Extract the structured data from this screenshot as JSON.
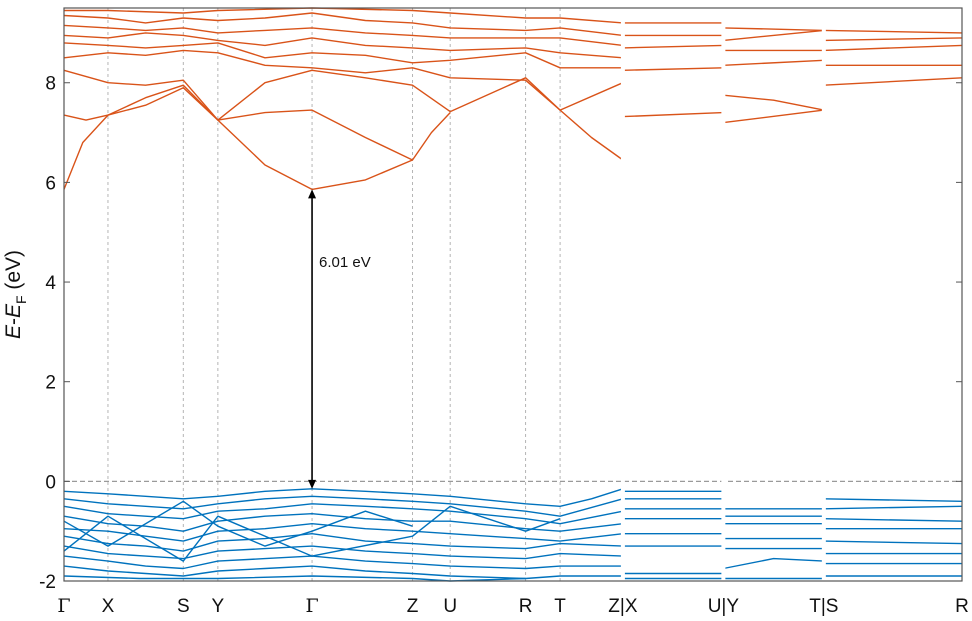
{
  "chart_data": {
    "type": "line",
    "title": "",
    "ylabel": {
      "parts": [
        "E",
        "-",
        "E",
        "F",
        " (eV)"
      ]
    },
    "ylim": [
      -2,
      9.5
    ],
    "yticks": [
      -2,
      0,
      2,
      4,
      6,
      8
    ],
    "fermi_level": 0,
    "kpath_labels": [
      "Γ",
      "X",
      "S",
      "Y",
      "Γ",
      "Z",
      "U",
      "R",
      "T",
      "Z|X",
      "U|Y",
      "T|S",
      "R"
    ],
    "kpath_positions": [
      0,
      0.7,
      1.9,
      2.45,
      3.95,
      5.55,
      6.15,
      7.35,
      7.9,
      8.9,
      10.5,
      12.1,
      14.3
    ],
    "gap": {
      "label": "6.01 eV",
      "k": 3.95,
      "vbm": -0.15,
      "cbm": 5.86
    },
    "colors": {
      "conduction": "#d95319",
      "valence": "#0072bd",
      "fermi": "#9a9a9a",
      "kline": "#b5b5b5",
      "frame": "#555555",
      "arrow": "#000000"
    },
    "series": [
      {
        "band": "conduction",
        "x": [
          0,
          0.3,
          0.7,
          1.3,
          1.9,
          2.45,
          3.2,
          3.95,
          4.8,
          5.55,
          5.85,
          6.15
        ],
        "y": [
          5.86,
          6.8,
          7.35,
          7.55,
          7.9,
          7.25,
          6.35,
          5.86,
          6.05,
          6.45,
          7.0,
          7.4
        ]
      },
      {
        "band": "conduction",
        "x": [
          0,
          0.35,
          0.7,
          1.3,
          1.9,
          2.45,
          3.2,
          3.95,
          4.8,
          5.55
        ],
        "y": [
          7.35,
          7.25,
          7.35,
          7.7,
          7.95,
          7.25,
          7.4,
          7.45,
          6.9,
          6.45
        ]
      },
      {
        "band": "conduction",
        "x": [
          0,
          0.7,
          1.3,
          1.9,
          2.45,
          3.2,
          3.95,
          4.8,
          5.55,
          6.15,
          7.35,
          7.9,
          8.4,
          8.9
        ],
        "y": [
          8.25,
          8.0,
          7.95,
          8.05,
          7.25,
          8.0,
          8.25,
          8.1,
          7.95,
          7.42,
          8.1,
          7.45,
          6.9,
          6.45
        ]
      },
      {
        "band": "conduction",
        "x": [
          0,
          0.7,
          1.3,
          1.9,
          2.45,
          3.2,
          3.95,
          4.8,
          5.55,
          6.15,
          7.35,
          7.9,
          8.9
        ],
        "y": [
          8.5,
          8.6,
          8.55,
          8.65,
          8.6,
          8.35,
          8.3,
          8.2,
          8.3,
          8.1,
          8.05,
          7.45,
          8.0
        ]
      },
      {
        "band": "conduction",
        "x": [
          0,
          0.7,
          1.3,
          1.9,
          2.45,
          3.2,
          3.95,
          4.8,
          5.55,
          6.15,
          7.35,
          7.9,
          8.9
        ],
        "y": [
          8.8,
          8.75,
          8.7,
          8.75,
          8.8,
          8.5,
          8.6,
          8.55,
          8.4,
          8.45,
          8.6,
          8.3,
          8.3
        ]
      },
      {
        "band": "conduction",
        "x": [
          0,
          0.7,
          1.3,
          1.9,
          2.45,
          3.2,
          3.95,
          4.8,
          5.55,
          6.15,
          7.35,
          7.9,
          8.9
        ],
        "y": [
          8.95,
          8.9,
          9.0,
          8.95,
          8.85,
          8.75,
          8.9,
          8.75,
          8.7,
          8.65,
          8.7,
          8.6,
          8.5
        ]
      },
      {
        "band": "conduction",
        "x": [
          0,
          0.7,
          1.3,
          1.9,
          2.45,
          3.2,
          3.95,
          4.8,
          5.55,
          6.15,
          7.35,
          7.9,
          8.9
        ],
        "y": [
          9.15,
          9.1,
          9.05,
          9.1,
          9.0,
          9.05,
          9.1,
          9.0,
          8.95,
          8.9,
          8.9,
          8.9,
          8.75
        ]
      },
      {
        "band": "conduction",
        "x": [
          0,
          0.7,
          1.3,
          1.9,
          2.45,
          3.2,
          3.95,
          4.8,
          5.55,
          6.15,
          7.35,
          7.9,
          8.9
        ],
        "y": [
          9.35,
          9.3,
          9.2,
          9.3,
          9.25,
          9.3,
          9.4,
          9.25,
          9.2,
          9.1,
          9.05,
          9.1,
          8.95
        ]
      },
      {
        "band": "conduction",
        "x": [
          0,
          0.7,
          1.9,
          2.45,
          3.95,
          5.55,
          6.15,
          7.35,
          7.9,
          8.9
        ],
        "y": [
          9.45,
          9.45,
          9.4,
          9.45,
          9.5,
          9.45,
          9.4,
          9.3,
          9.3,
          9.2
        ]
      },
      {
        "band": "conduction",
        "x": [
          8.9,
          10.5
        ],
        "y": [
          7.32,
          7.4
        ]
      },
      {
        "band": "conduction",
        "x": [
          8.9,
          10.5
        ],
        "y": [
          8.25,
          8.3
        ]
      },
      {
        "band": "conduction",
        "x": [
          8.9,
          10.5
        ],
        "y": [
          8.7,
          8.75
        ]
      },
      {
        "band": "conduction",
        "x": [
          8.9,
          10.5
        ],
        "y": [
          8.95,
          8.95
        ]
      },
      {
        "band": "conduction",
        "x": [
          8.9,
          10.5
        ],
        "y": [
          9.2,
          9.2
        ]
      },
      {
        "band": "conduction",
        "x": [
          10.5,
          12.1
        ],
        "y": [
          7.2,
          7.45
        ]
      },
      {
        "band": "conduction",
        "x": [
          10.5,
          11.3,
          12.1
        ],
        "y": [
          7.75,
          7.65,
          7.45
        ]
      },
      {
        "band": "conduction",
        "x": [
          10.5,
          12.1
        ],
        "y": [
          8.35,
          8.45
        ]
      },
      {
        "band": "conduction",
        "x": [
          10.5,
          12.1
        ],
        "y": [
          8.65,
          8.65
        ]
      },
      {
        "band": "conduction",
        "x": [
          10.5,
          12.1
        ],
        "y": [
          8.85,
          9.05
        ]
      },
      {
        "band": "conduction",
        "x": [
          10.5,
          12.1
        ],
        "y": [
          9.1,
          9.05
        ]
      },
      {
        "band": "conduction",
        "x": [
          12.1,
          14.3
        ],
        "y": [
          7.95,
          8.1
        ]
      },
      {
        "band": "conduction",
        "x": [
          12.1,
          14.3
        ],
        "y": [
          8.35,
          8.35
        ]
      },
      {
        "band": "conduction",
        "x": [
          12.1,
          14.3
        ],
        "y": [
          8.65,
          8.75
        ]
      },
      {
        "band": "conduction",
        "x": [
          12.1,
          14.3
        ],
        "y": [
          8.85,
          8.9
        ]
      },
      {
        "band": "conduction",
        "x": [
          12.1,
          14.3
        ],
        "y": [
          9.05,
          9.0
        ]
      },
      {
        "band": "valence",
        "x": [
          0,
          0.7,
          1.3,
          1.9,
          2.45,
          3.2,
          3.95,
          4.8,
          5.55,
          6.15,
          7.35,
          7.9,
          8.4,
          8.9
        ],
        "y": [
          -0.2,
          -0.25,
          -0.3,
          -0.35,
          -0.3,
          -0.2,
          -0.15,
          -0.2,
          -0.25,
          -0.3,
          -0.45,
          -0.5,
          -0.35,
          -0.15
        ]
      },
      {
        "band": "valence",
        "x": [
          0,
          0.7,
          1.3,
          1.9,
          2.45,
          3.2,
          3.95,
          4.8,
          5.55,
          6.15,
          7.35,
          7.9,
          8.9
        ],
        "y": [
          -0.35,
          -0.45,
          -0.5,
          -0.55,
          -0.45,
          -0.35,
          -0.3,
          -0.35,
          -0.4,
          -0.45,
          -0.6,
          -0.7,
          -0.35
        ]
      },
      {
        "band": "valence",
        "x": [
          0,
          0.7,
          1.3,
          1.9,
          2.45,
          3.2,
          3.95,
          4.8,
          5.55,
          6.15,
          7.35,
          7.9,
          8.9
        ],
        "y": [
          -0.5,
          -0.65,
          -0.7,
          -0.75,
          -0.6,
          -0.55,
          -0.45,
          -0.5,
          -0.55,
          -0.6,
          -0.75,
          -0.85,
          -0.6
        ]
      },
      {
        "band": "valence",
        "x": [
          0,
          0.7,
          1.3,
          1.9,
          2.45,
          3.2,
          3.95,
          4.8,
          5.55,
          6.15,
          7.35,
          7.9,
          8.9
        ],
        "y": [
          -0.7,
          -0.85,
          -0.9,
          -1.0,
          -0.8,
          -0.7,
          -0.65,
          -0.75,
          -0.8,
          -0.8,
          -0.95,
          -1.0,
          -0.85
        ]
      },
      {
        "band": "valence",
        "x": [
          0,
          0.7,
          1.3,
          1.9,
          2.45,
          3.2,
          3.95,
          4.8,
          5.55,
          6.15,
          7.35,
          7.9,
          8.9
        ],
        "y": [
          -0.95,
          -1.0,
          -1.1,
          -1.2,
          -1.0,
          -0.95,
          -0.85,
          -0.95,
          -1.0,
          -1.05,
          -1.15,
          -1.2,
          -1.05
        ]
      },
      {
        "band": "valence",
        "x": [
          0,
          0.7,
          1.3,
          1.9,
          2.45,
          3.2,
          3.95,
          4.8,
          5.55,
          6.15,
          7.35,
          7.9,
          8.9
        ],
        "y": [
          -1.1,
          -1.25,
          -1.3,
          -1.4,
          -1.2,
          -1.15,
          -1.05,
          -1.2,
          -1.25,
          -1.3,
          -1.35,
          -1.25,
          -1.3
        ]
      },
      {
        "band": "valence",
        "x": [
          0,
          0.7,
          1.3,
          1.9,
          2.45,
          3.2,
          3.95,
          4.8,
          5.55,
          6.15,
          7.35,
          7.9,
          8.9
        ],
        "y": [
          -1.3,
          -1.45,
          -1.5,
          -1.55,
          -1.4,
          -1.35,
          -1.3,
          -1.4,
          -1.45,
          -1.5,
          -1.55,
          -1.45,
          -1.5
        ]
      },
      {
        "band": "valence",
        "x": [
          0,
          0.7,
          1.3,
          1.9,
          2.45,
          3.2,
          3.95,
          4.8,
          5.55,
          6.15,
          7.35,
          7.9,
          8.9
        ],
        "y": [
          -1.5,
          -1.6,
          -1.7,
          -1.75,
          -1.6,
          -1.55,
          -1.5,
          -1.6,
          -1.65,
          -1.7,
          -1.75,
          -1.7,
          -1.7
        ]
      },
      {
        "band": "valence",
        "x": [
          0,
          0.7,
          1.3,
          1.9,
          2.45,
          3.2,
          3.95,
          4.8,
          5.55,
          6.15,
          7.35,
          7.9,
          8.9
        ],
        "y": [
          -1.7,
          -1.8,
          -1.85,
          -1.9,
          -1.8,
          -1.75,
          -1.7,
          -1.8,
          -1.85,
          -1.9,
          -1.95,
          -1.9,
          -1.9
        ]
      },
      {
        "band": "valence",
        "x": [
          0,
          1.2,
          2.45,
          3.95,
          5.55,
          6.15,
          7.35
        ],
        "y": [
          -1.9,
          -1.95,
          -1.95,
          -1.9,
          -1.95,
          -2.0,
          -1.95
        ]
      },
      {
        "band": "valence",
        "x": [
          0,
          0.7,
          1.9,
          2.45,
          3.2,
          3.95,
          4.8,
          5.55
        ],
        "y": [
          -0.8,
          -1.3,
          -0.4,
          -0.9,
          -1.3,
          -1.0,
          -0.6,
          -0.9
        ]
      },
      {
        "band": "valence",
        "x": [
          0,
          0.7,
          1.9,
          2.45,
          3.95,
          5.55,
          6.15,
          7.35,
          7.9
        ],
        "y": [
          -1.4,
          -0.7,
          -1.6,
          -0.7,
          -1.5,
          -1.1,
          -0.5,
          -1.0,
          -0.75
        ]
      },
      {
        "band": "valence",
        "x": [
          8.9,
          10.5
        ],
        "y": [
          -0.2,
          -0.2
        ]
      },
      {
        "band": "valence",
        "x": [
          8.9,
          10.5
        ],
        "y": [
          -0.35,
          -0.35
        ]
      },
      {
        "band": "valence",
        "x": [
          8.9,
          10.5
        ],
        "y": [
          -0.55,
          -0.55
        ]
      },
      {
        "band": "valence",
        "x": [
          8.9,
          10.5
        ],
        "y": [
          -0.75,
          -0.75
        ]
      },
      {
        "band": "valence",
        "x": [
          8.9,
          10.5
        ],
        "y": [
          -1.05,
          -1.05
        ]
      },
      {
        "band": "valence",
        "x": [
          8.9,
          10.5
        ],
        "y": [
          -1.3,
          -1.3
        ]
      },
      {
        "band": "valence",
        "x": [
          8.9,
          10.5
        ],
        "y": [
          -1.85,
          -1.85
        ]
      },
      {
        "band": "valence",
        "x": [
          8.9,
          10.5
        ],
        "y": [
          -1.95,
          -1.95
        ]
      },
      {
        "band": "valence",
        "x": [
          10.5,
          12.1
        ],
        "y": [
          -0.55,
          -0.55
        ]
      },
      {
        "band": "valence",
        "x": [
          10.5,
          12.1
        ],
        "y": [
          -0.7,
          -0.7
        ]
      },
      {
        "band": "valence",
        "x": [
          10.5,
          12.1
        ],
        "y": [
          -0.85,
          -0.85
        ]
      },
      {
        "band": "valence",
        "x": [
          10.5,
          12.1
        ],
        "y": [
          -1.15,
          -1.15
        ]
      },
      {
        "band": "valence",
        "x": [
          10.5,
          12.1
        ],
        "y": [
          -1.35,
          -1.35
        ]
      },
      {
        "band": "valence",
        "x": [
          10.5,
          11.3,
          12.1
        ],
        "y": [
          -1.75,
          -1.55,
          -1.6
        ]
      },
      {
        "band": "valence",
        "x": [
          10.5,
          12.1
        ],
        "y": [
          -1.95,
          -1.95
        ]
      },
      {
        "band": "valence",
        "x": [
          12.1,
          14.3
        ],
        "y": [
          -0.35,
          -0.4
        ]
      },
      {
        "band": "valence",
        "x": [
          12.1,
          14.3
        ],
        "y": [
          -0.55,
          -0.5
        ]
      },
      {
        "band": "valence",
        "x": [
          12.1,
          14.3
        ],
        "y": [
          -0.75,
          -0.8
        ]
      },
      {
        "band": "valence",
        "x": [
          12.1,
          14.3
        ],
        "y": [
          -0.95,
          -0.95
        ]
      },
      {
        "band": "valence",
        "x": [
          12.1,
          14.3
        ],
        "y": [
          -1.2,
          -1.25
        ]
      },
      {
        "band": "valence",
        "x": [
          12.1,
          14.3
        ],
        "y": [
          -1.45,
          -1.45
        ]
      },
      {
        "band": "valence",
        "x": [
          12.1,
          14.3
        ],
        "y": [
          -1.65,
          -1.65
        ]
      },
      {
        "band": "valence",
        "x": [
          12.1,
          14.3
        ],
        "y": [
          -1.9,
          -1.9
        ]
      }
    ]
  }
}
